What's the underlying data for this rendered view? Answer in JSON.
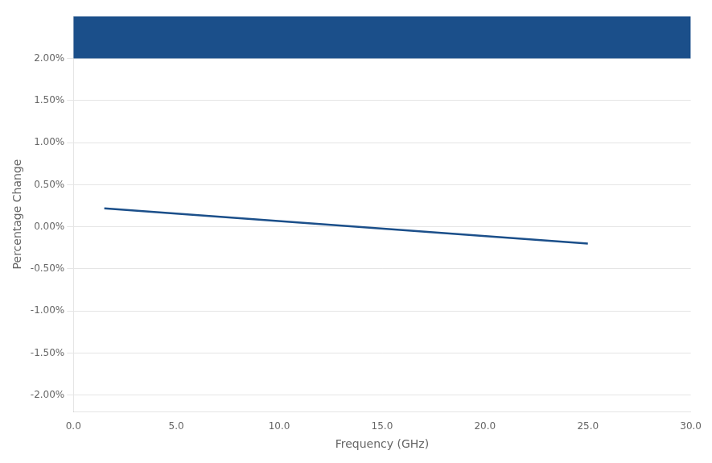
{
  "chart_data": {
    "type": "line",
    "x_label": "Frequency (GHz)",
    "y_label": "Percentage Change",
    "x": [
      1.5,
      25.0
    ],
    "values": [
      0.0022,
      -0.002
    ],
    "color": "#1B4F8A",
    "xlim": [
      0,
      30
    ],
    "ylim": [
      -0.022,
      0.025
    ],
    "xticks": [
      {
        "value": 0.0,
        "label": "0.0"
      },
      {
        "value": 5.0,
        "label": "5.0"
      },
      {
        "value": 10.0,
        "label": "10.0"
      },
      {
        "value": 15.0,
        "label": "15.0"
      },
      {
        "value": 20.0,
        "label": "20.0"
      },
      {
        "value": 25.0,
        "label": "25.0"
      },
      {
        "value": 30.0,
        "label": "30.0"
      }
    ],
    "yticks": [
      {
        "value": -0.02,
        "label": "-2.00%"
      },
      {
        "value": -0.015,
        "label": "-1.50%"
      },
      {
        "value": -0.01,
        "label": "-1.00%"
      },
      {
        "value": -0.005,
        "label": "-0.50%"
      },
      {
        "value": 0.0,
        "label": "0.00%"
      },
      {
        "value": 0.005,
        "label": "0.50%"
      },
      {
        "value": 0.01,
        "label": "1.00%"
      },
      {
        "value": 0.015,
        "label": "1.50%"
      },
      {
        "value": 0.02,
        "label": "2.00%"
      }
    ],
    "shade": {
      "ymin": 0.02,
      "ymax": 0.025,
      "color": "#1B4F8A"
    },
    "grid": "y"
  }
}
